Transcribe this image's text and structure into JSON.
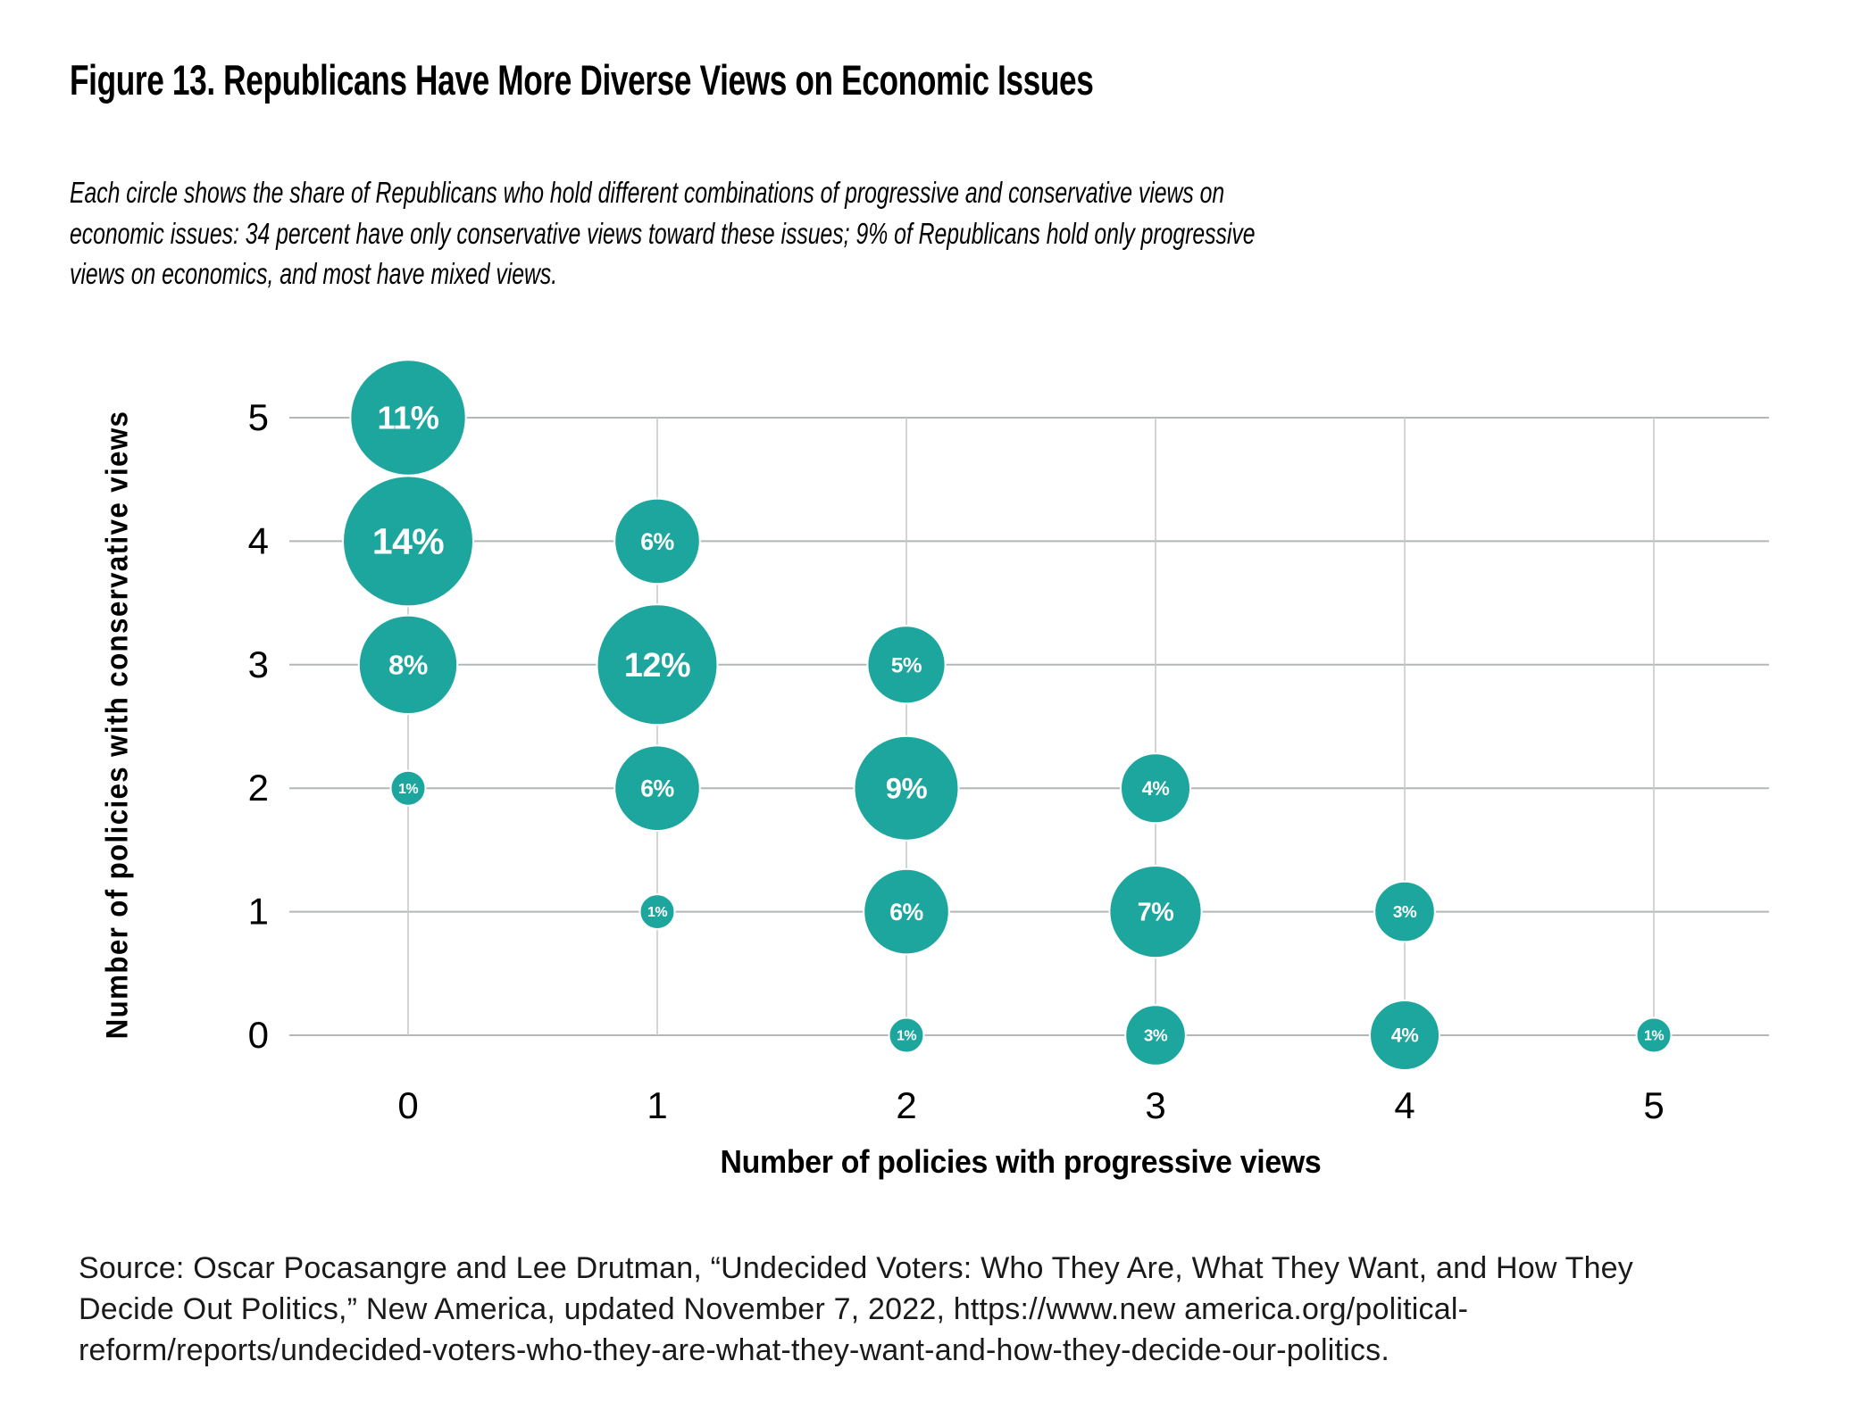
{
  "figure": {
    "title": "Figure 13. Republicans Have More Diverse Views on Economic Issues",
    "subtitle": "Each circle shows the share of Republicans who hold different combinations of progressive and conservative views on economic issues: 34 percent have only conservative views toward these issues; 9% of Republicans hold only progressive views on economics, and most have mixed views.",
    "source": "Source: Oscar Pocasangre and Lee Drutman, “Undecided Voters: Who They Are, What They Want, and How They Decide Out Politics,” New America, updated November 7, 2022, https://www.new america.org/political-reform/reports/undecided-voters-who-they-are-what-they-want-and-how-they-decide-our-politics."
  },
  "colors": {
    "bubble": "#1da69d",
    "bubble_label": "#ffffff",
    "grid_horizontal": "#b3b7b8",
    "grid_vertical": "#c6cacb",
    "text": "#000000"
  },
  "chart_data": {
    "type": "scatter",
    "subtype": "bubble",
    "title": "Figure 13. Republicans Have More Diverse Views on Economic Issues",
    "xlabel": "Number of policies with progressive views",
    "ylabel": "Number of policies with conservative views",
    "x_ticks": [
      0,
      1,
      2,
      3,
      4,
      5
    ],
    "y_ticks": [
      0,
      1,
      2,
      3,
      4,
      5
    ],
    "xlim": [
      -0.5,
      5.5
    ],
    "ylim": [
      -0.5,
      5.5
    ],
    "grid": true,
    "legend": false,
    "value_unit": "% of Republicans",
    "size_encoding": "bubble area proportional to percent value",
    "points": [
      {
        "x": 0,
        "y": 5,
        "value": 11,
        "label": "11%"
      },
      {
        "x": 0,
        "y": 4,
        "value": 14,
        "label": "14%"
      },
      {
        "x": 0,
        "y": 3,
        "value": 8,
        "label": "8%"
      },
      {
        "x": 0,
        "y": 2,
        "value": 1,
        "label": "1%"
      },
      {
        "x": 1,
        "y": 4,
        "value": 6,
        "label": "6%"
      },
      {
        "x": 1,
        "y": 3,
        "value": 12,
        "label": "12%"
      },
      {
        "x": 1,
        "y": 2,
        "value": 6,
        "label": "6%"
      },
      {
        "x": 1,
        "y": 1,
        "value": 1,
        "label": "1%"
      },
      {
        "x": 2,
        "y": 3,
        "value": 5,
        "label": "5%"
      },
      {
        "x": 2,
        "y": 2,
        "value": 9,
        "label": "9%"
      },
      {
        "x": 2,
        "y": 1,
        "value": 6,
        "label": "6%"
      },
      {
        "x": 2,
        "y": 0,
        "value": 1,
        "label": "1%"
      },
      {
        "x": 3,
        "y": 2,
        "value": 4,
        "label": "4%"
      },
      {
        "x": 3,
        "y": 1,
        "value": 7,
        "label": "7%"
      },
      {
        "x": 3,
        "y": 0,
        "value": 3,
        "label": "3%"
      },
      {
        "x": 4,
        "y": 1,
        "value": 3,
        "label": "3%"
      },
      {
        "x": 4,
        "y": 0,
        "value": 4,
        "label": "4%"
      },
      {
        "x": 5,
        "y": 0,
        "value": 1,
        "label": "1%"
      }
    ]
  }
}
